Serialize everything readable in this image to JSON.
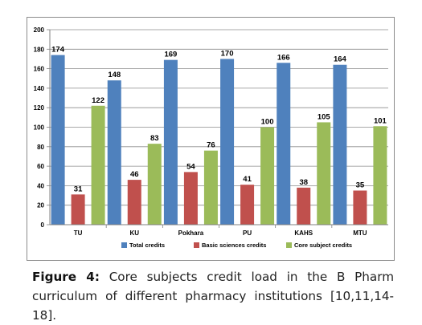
{
  "chart_data": {
    "type": "bar",
    "categories": [
      "TU",
      "KU",
      "Pokhara",
      "PU",
      "KAHS",
      "MTU"
    ],
    "series": [
      {
        "name": "Total credits",
        "values": [
          174,
          148,
          169,
          170,
          166,
          164
        ],
        "color": "#4f81bd"
      },
      {
        "name": "Basic sciences credits",
        "values": [
          31,
          46,
          54,
          41,
          38,
          35
        ],
        "color": "#c0504d"
      },
      {
        "name": "Core subject credits",
        "values": [
          122,
          83,
          76,
          100,
          105,
          101
        ],
        "color": "#9bbb59"
      }
    ],
    "ylim": [
      0,
      200
    ],
    "yticks": [
      0,
      20,
      40,
      60,
      80,
      100,
      120,
      140,
      160,
      180,
      200
    ],
    "grid": true,
    "legend": "bottom"
  },
  "caption": {
    "label": "Figure 4:",
    "text": "Core subjects credit load in the B Pharm curriculum of different pharmacy institutions [10,11,14-18]."
  }
}
